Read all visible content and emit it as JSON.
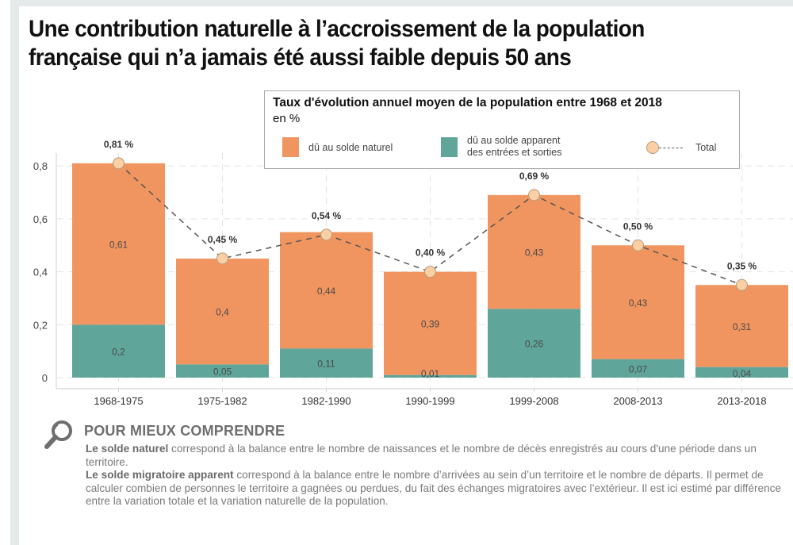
{
  "title": {
    "line1": "Une contribution naturelle à l’accroissement de la population",
    "line2": "française qui n’a jamais été aussi faible depuis 50 ans"
  },
  "legend": {
    "title": "Taux d'évolution annuel moyen de la population entre 1968 et 2018",
    "unit": "en %",
    "items": [
      {
        "label": "dû au solde naturel",
        "color": "#f0955f"
      },
      {
        "label_line1": "dû au solde apparent",
        "label_line2": "des entrées et sorties",
        "color": "#5fa59a"
      },
      {
        "label": "Total",
        "color": "#f9cfa3"
      }
    ]
  },
  "chart_data": {
    "type": "bar",
    "stacked": true,
    "title": "Taux d'évolution annuel moyen de la population entre 1968 et 2018",
    "subtitle": "en %",
    "xlabel": "",
    "ylabel": "",
    "ylim": [
      0,
      0.85
    ],
    "yticks": [
      0,
      0.2,
      0.4,
      0.6,
      0.8
    ],
    "ytick_labels": [
      "0",
      "0,2",
      "0,4",
      "0,6",
      "0,8"
    ],
    "grid": true,
    "legend_position": "top-right",
    "categories": [
      "1968-1975",
      "1975-1982",
      "1982-1990",
      "1990-1999",
      "1999-2008",
      "2008-2013",
      "2013-2018"
    ],
    "series": [
      {
        "name": "dû au solde apparent des entrées et sorties",
        "color": "#5fa59a",
        "values": [
          0.2,
          0.05,
          0.11,
          0.01,
          0.26,
          0.07,
          0.04
        ],
        "labels": [
          "0,2",
          "0,05",
          "0,11",
          "0,01",
          "0,26",
          "0,07",
          "0,04"
        ]
      },
      {
        "name": "dû au solde naturel",
        "color": "#f0955f",
        "values": [
          0.61,
          0.4,
          0.44,
          0.39,
          0.43,
          0.43,
          0.31
        ],
        "labels": [
          "0,61",
          "0,4",
          "0,44",
          "0,39",
          "0,43",
          "0,43",
          "0,31"
        ]
      }
    ],
    "total": {
      "name": "Total",
      "type": "line",
      "style": "dashed",
      "marker_color": "#f9cfa3",
      "values": [
        0.81,
        0.45,
        0.54,
        0.4,
        0.69,
        0.5,
        0.35
      ],
      "labels": [
        "0,81 %",
        "0,45 %",
        "0,54 %",
        "0,40 %",
        "0,69 %",
        "0,50 %",
        "0,35 %"
      ]
    }
  },
  "explanation": {
    "icon": "magnifier-icon",
    "heading": "POUR MIEUX COMPRENDRE",
    "p1_bold": "Le solde naturel",
    "p1_text": " correspond à la balance entre le nombre de naissances et le nombre de décès enregistrés au cours d'une période dans un territoire.",
    "p2_bold": "Le solde migratoire apparent",
    "p2_text": " correspond à la balance entre le nombre d’arrivées au sein d’un territoire et le nombre de départs. Il permet de calculer combien de personnes le territoire a gagnées ou perdues, du fait des échanges migratoires avec l’extérieur. Il est ici estimé par différence entre la variation totale et la variation naturelle de la population."
  }
}
